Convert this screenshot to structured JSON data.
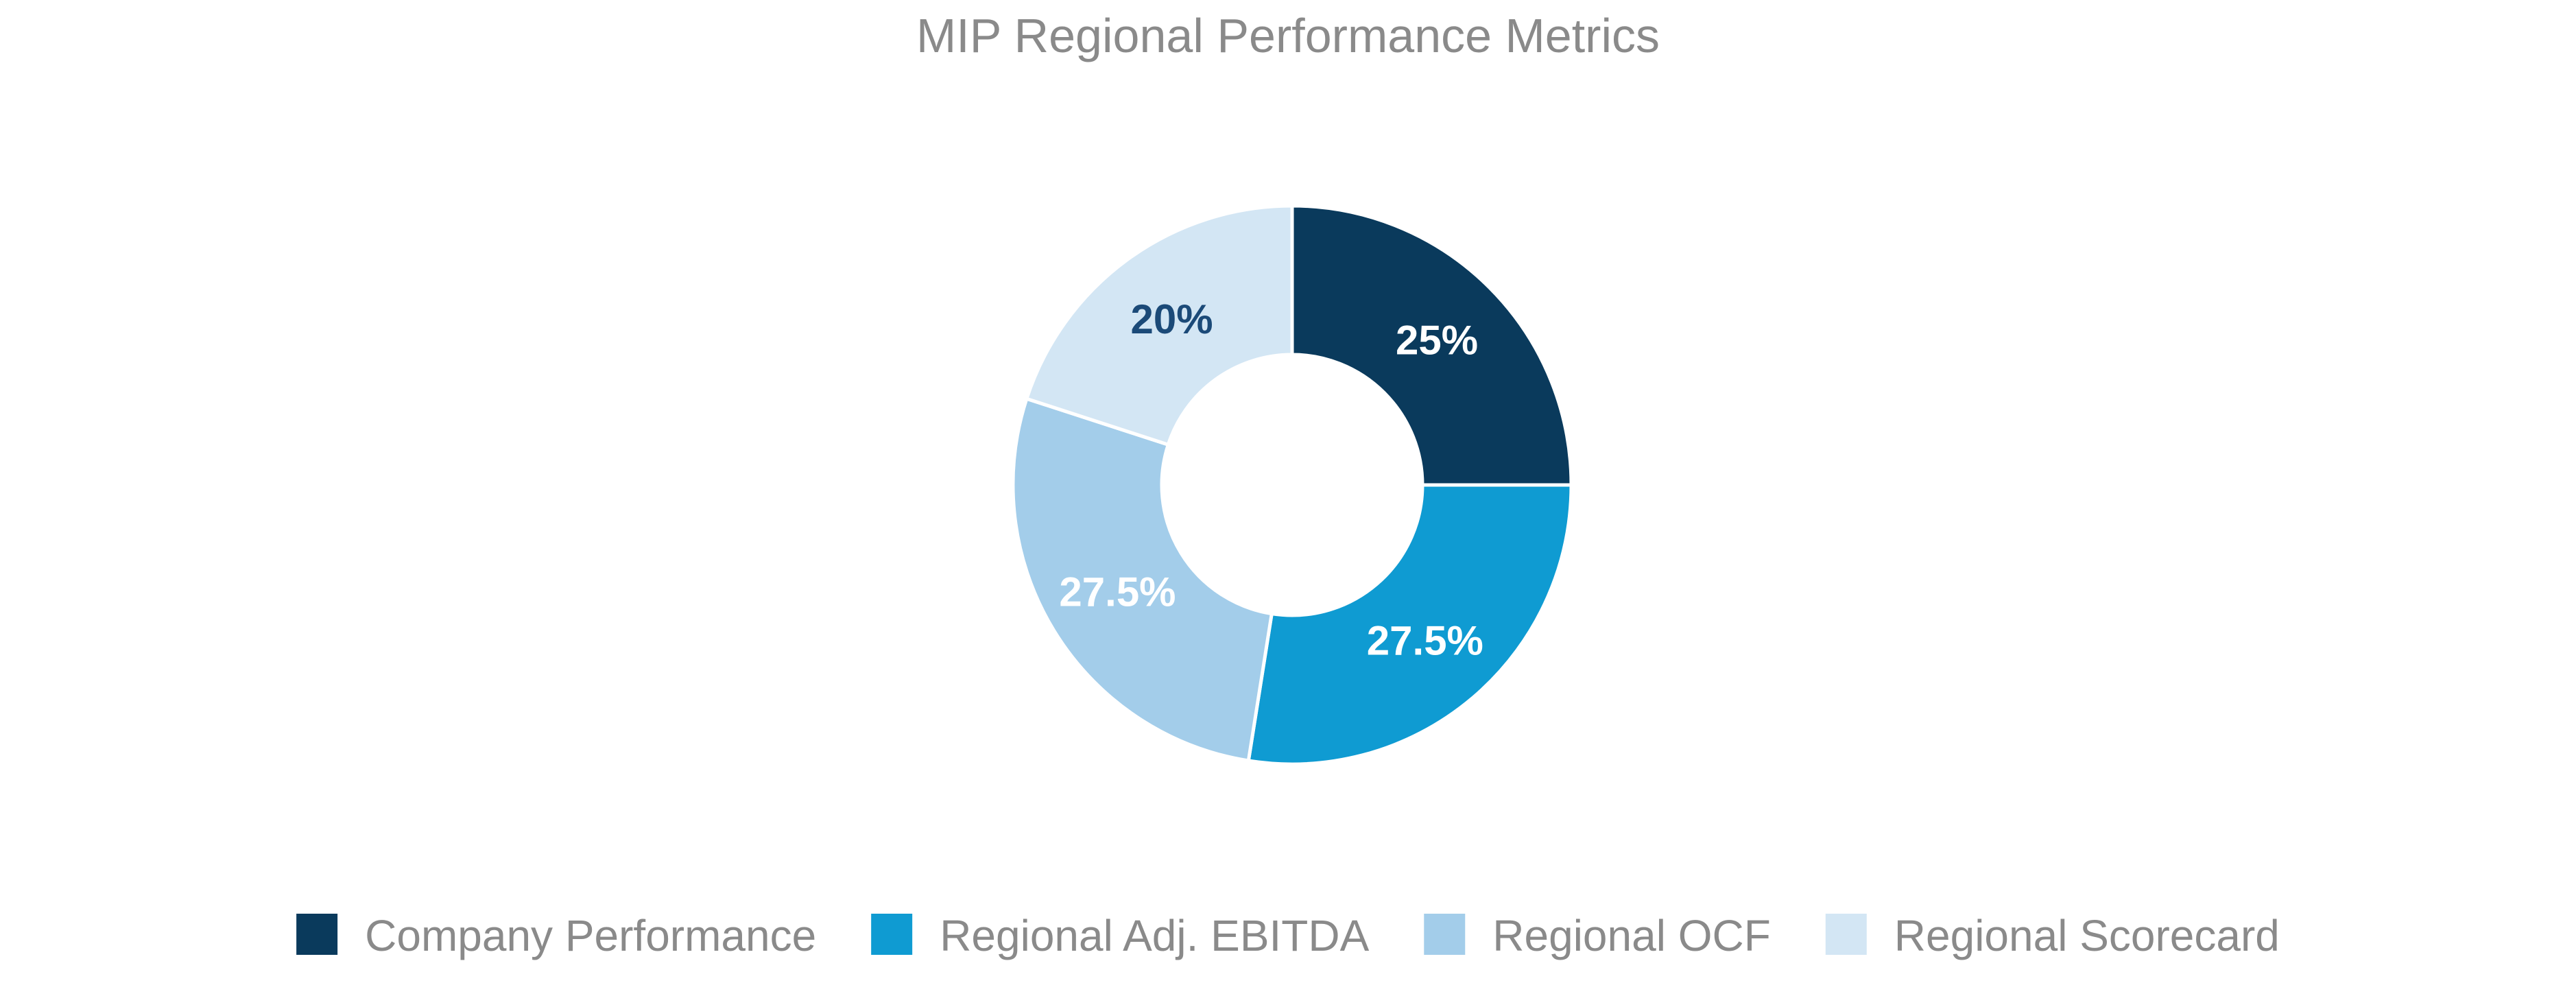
{
  "chart_data": {
    "type": "pie",
    "variant": "donut",
    "title": "MIP Regional Performance Metrics",
    "categories": [
      "Company Performance",
      "Regional Adj. EBITDA",
      "Regional OCF",
      "Regional Scorecard"
    ],
    "values": [
      25,
      27.5,
      27.5,
      20
    ],
    "labels": [
      "25%",
      "27.5%",
      "27.5%",
      "20%"
    ],
    "colors": [
      "#0a3a5c",
      "#0f9bd2",
      "#a3cdea",
      "#d3e6f4"
    ],
    "label_colors": [
      "#ffffff",
      "#ffffff",
      "#ffffff",
      "#1b4a78"
    ],
    "legend_position": "bottom",
    "start_angle": "12 o'clock",
    "direction": "clockwise"
  }
}
